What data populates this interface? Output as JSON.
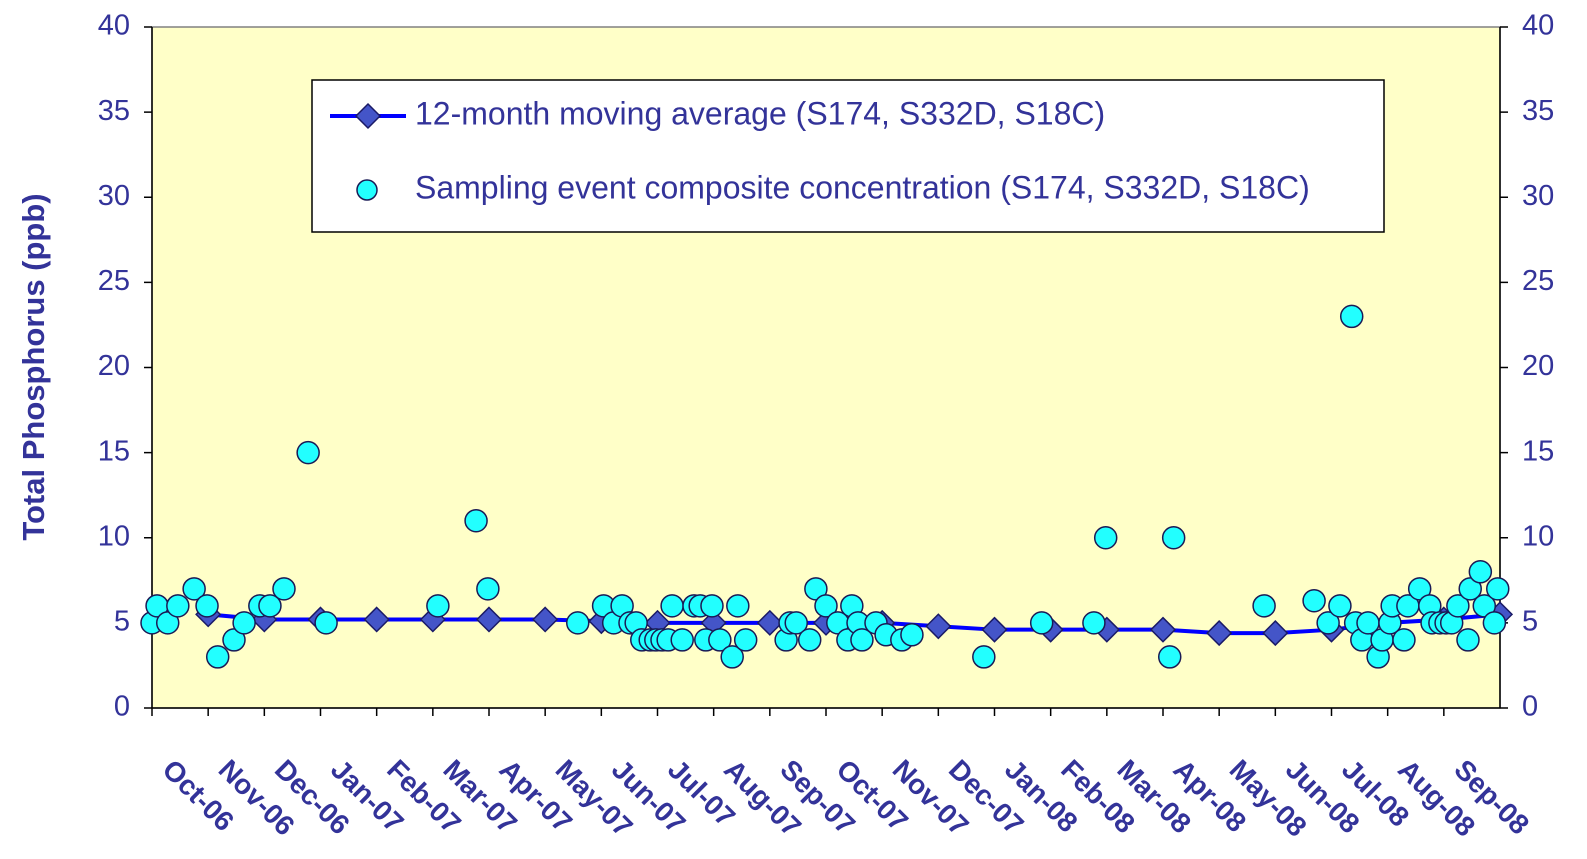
{
  "chart_data": {
    "type": "line",
    "ylabel": "Total Phosphorus (ppb)",
    "xlim": [
      0,
      24
    ],
    "xticks": [
      {
        "value": 0,
        "label": "Oct-06"
      },
      {
        "value": 1,
        "label": "Nov-06"
      },
      {
        "value": 2,
        "label": "Dec-06"
      },
      {
        "value": 3,
        "label": "Jan-07"
      },
      {
        "value": 4,
        "label": "Feb-07"
      },
      {
        "value": 5,
        "label": "Mar-07"
      },
      {
        "value": 6,
        "label": "Apr-07"
      },
      {
        "value": 7,
        "label": "May-07"
      },
      {
        "value": 8,
        "label": "Jun-07"
      },
      {
        "value": 9,
        "label": "Jul-07"
      },
      {
        "value": 10,
        "label": "Aug-07"
      },
      {
        "value": 11,
        "label": "Sep-07"
      },
      {
        "value": 12,
        "label": "Oct-07"
      },
      {
        "value": 13,
        "label": "Nov-07"
      },
      {
        "value": 14,
        "label": "Dec-07"
      },
      {
        "value": 15,
        "label": "Jan-08"
      },
      {
        "value": 16,
        "label": "Feb-08"
      },
      {
        "value": 17,
        "label": "Mar-08"
      },
      {
        "value": 18,
        "label": "Apr-08"
      },
      {
        "value": 19,
        "label": "May-08"
      },
      {
        "value": 20,
        "label": "Jun-08"
      },
      {
        "value": 21,
        "label": "Jul-08"
      },
      {
        "value": 22,
        "label": "Aug-08"
      },
      {
        "value": 23,
        "label": "Sep-08"
      }
    ],
    "ylim": [
      0,
      40
    ],
    "yticks": [
      0,
      5,
      10,
      15,
      20,
      25,
      30,
      35,
      40
    ],
    "y2lim": [
      0,
      40
    ],
    "y2ticks": [
      0,
      5,
      10,
      15,
      20,
      25,
      30,
      35,
      40
    ],
    "background": "#ffffc8",
    "legend": "top",
    "series": [
      {
        "name": "12-month moving average (S174, S332D, S18C)",
        "color": "#0000ff",
        "marker": "diamond",
        "marker_color": "#4455c8",
        "line": true,
        "x": [
          1,
          2,
          3,
          4,
          5,
          6,
          7,
          8,
          9,
          10,
          11,
          12,
          13,
          14,
          15,
          16,
          17,
          18,
          19,
          20,
          21,
          22,
          23,
          24
        ],
        "values": [
          5.5,
          5.2,
          5.2,
          5.2,
          5.2,
          5.2,
          5.2,
          5.1,
          5.0,
          5.0,
          5.0,
          5.0,
          5.0,
          4.8,
          4.6,
          4.6,
          4.6,
          4.6,
          4.4,
          4.4,
          4.6,
          5.0,
          5.2,
          5.5
        ]
      },
      {
        "name": "Sampling event composite concentration (S174, S332D, S18C)",
        "color": "#22ffff",
        "marker": "circle",
        "line": false,
        "x": [
          0,
          0.09,
          0.28,
          0.46,
          0.75,
          0.98,
          1.17,
          1.46,
          1.64,
          1.92,
          2.1,
          2.35,
          2.78,
          3.1,
          5.09,
          5.77,
          5.98,
          7.58,
          8.04,
          8.22,
          8.37,
          8.51,
          8.62,
          8.72,
          8.87,
          8.97,
          9.08,
          9.19,
          9.26,
          9.44,
          9.65,
          9.76,
          9.86,
          9.97,
          10.11,
          10.33,
          10.43,
          10.57,
          11.29,
          11.36,
          11.47,
          11.71,
          11.82,
          12.0,
          12.21,
          12.39,
          12.46,
          12.57,
          12.64,
          12.89,
          13.07,
          13.35,
          13.53,
          14.81,
          15.84,
          16.77,
          16.98,
          18.12,
          18.19,
          19.8,
          20.69,
          20.94,
          21.15,
          21.36,
          21.43,
          21.54,
          21.65,
          21.83,
          21.9,
          22.04,
          22.08,
          22.29,
          22.36,
          22.57,
          22.75,
          22.79,
          22.93,
          23.04,
          23.14,
          23.25,
          23.43,
          23.47,
          23.65,
          23.72,
          23.9,
          23.96
        ],
        "values": [
          5,
          6,
          5,
          6,
          7,
          6,
          3,
          4,
          5,
          6,
          6,
          7,
          15,
          5,
          6,
          11,
          7,
          5,
          6,
          5,
          6,
          5,
          5,
          4,
          4,
          4,
          4,
          4,
          6,
          4,
          6,
          6,
          4,
          6,
          4,
          3,
          6,
          4,
          4,
          5,
          5,
          4,
          7,
          6,
          5,
          4,
          6,
          5,
          4,
          5,
          4.3,
          4,
          4.3,
          3,
          5,
          5,
          10,
          3,
          10,
          6,
          6.3,
          5,
          6,
          23,
          5,
          4,
          5,
          3,
          4,
          5,
          6,
          4,
          6,
          7,
          6,
          5,
          5,
          5,
          5,
          6,
          4,
          7,
          8,
          6,
          5,
          7
        ]
      }
    ]
  }
}
